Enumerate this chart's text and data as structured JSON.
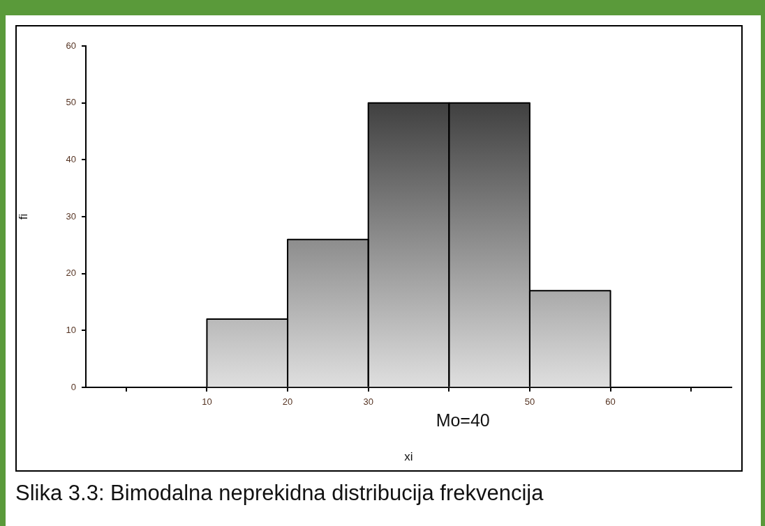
{
  "chart_data": {
    "type": "histogram",
    "xlabel": "xi",
    "ylabel": "fi",
    "bins": [
      10,
      20,
      30,
      40,
      50,
      60
    ],
    "values": [
      12,
      26,
      50,
      50,
      17
    ],
    "color": "#808080",
    "xlim": [
      -5,
      75
    ],
    "xticks": [
      {
        "value": 0,
        "label": null
      },
      10,
      20,
      30,
      {
        "value": 40,
        "label": null
      },
      50,
      60,
      {
        "value": 70,
        "label": null
      }
    ],
    "ylim": [
      0,
      60
    ],
    "yticks": [
      0,
      10,
      20,
      30,
      40,
      50,
      60
    ],
    "annotations": [
      "Mo=40",
      "Slika 3.3: Bimodalna neprekidna distribucija frekvencija"
    ],
    "legend": false
  }
}
